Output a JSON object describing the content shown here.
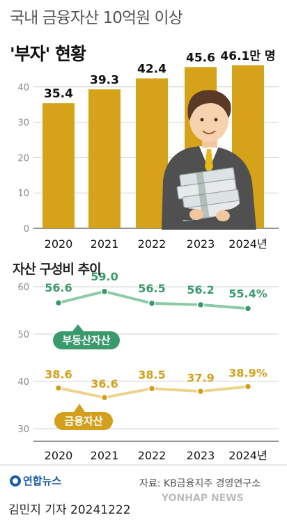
{
  "header": {
    "title_line1": "국내 금융자산 10억원 이상",
    "title_line2": "'부자' 현황"
  },
  "chart_data": [
    {
      "type": "bar",
      "categories": [
        "2020",
        "2021",
        "2022",
        "2023",
        "2024년"
      ],
      "values": [
        35.4,
        39.3,
        42.4,
        45.6,
        46.1
      ],
      "value_labels": [
        "35.4",
        "39.3",
        "42.4",
        "45.6",
        "46.1만 명"
      ],
      "title": "'부자' 현황",
      "ylabel": "",
      "yticks": [
        "0",
        "10",
        "20",
        "30",
        "40"
      ],
      "ylim": [
        0,
        50
      ],
      "grid": true,
      "color": "#d6a21a"
    },
    {
      "type": "line",
      "title": "자산 구성비 추이",
      "categories": [
        "2020",
        "2021",
        "2022",
        "2023",
        "2024년"
      ],
      "ylim": [
        30,
        60
      ],
      "yticks": [
        "30",
        "40",
        "50",
        "60"
      ],
      "grid": true,
      "series": [
        {
          "name": "부동산자산",
          "values": [
            56.6,
            59.0,
            56.5,
            56.2,
            55.4
          ],
          "labels": [
            "56.6",
            "59.0",
            "56.5",
            "56.2",
            "55.4%"
          ],
          "color": "#3a9a6c",
          "line_color": "#8ccaa8"
        },
        {
          "name": "금융자산",
          "values": [
            38.6,
            36.6,
            38.5,
            37.9,
            38.9
          ],
          "labels": [
            "38.6",
            "36.6",
            "38.5",
            "37.9",
            "38.9%"
          ],
          "color": "#d2a01c",
          "line_color": "#ecd48c"
        }
      ]
    }
  ],
  "footer": {
    "logo_text": "연합뉴스",
    "source": "자료: KB금융지주 경영연구소",
    "credit": "김민지 기자  20241222",
    "watermark": "YONHAP NEWS"
  },
  "illustration": {
    "icon": "businessman-holding-money-icon"
  }
}
